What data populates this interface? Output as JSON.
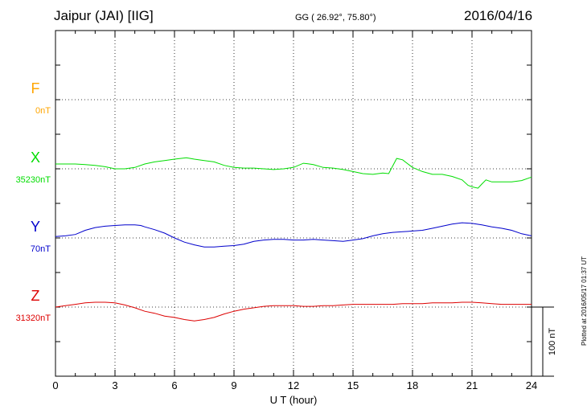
{
  "header": {
    "station": "Jaipur (JAI)  [IIG]",
    "coords": "GG ( 26.92°,  75.80°)",
    "date": "2016/04/16"
  },
  "plotted_note": "Plotted at 2016/05/17 01:37 UT",
  "scale_bar_label": "100 nT",
  "colors": {
    "F": "#ffa500",
    "X": "#00dd00",
    "Y": "#0000cc",
    "Z": "#dd0000"
  },
  "chart_data": {
    "type": "line",
    "title": "Jaipur (JAI)  [IIG]",
    "xlabel": "U T (hour)",
    "xlim": [
      0,
      24
    ],
    "x_ticks": [
      0,
      3,
      6,
      9,
      12,
      15,
      18,
      21,
      24
    ],
    "grid": true,
    "series": [
      {
        "name": "F",
        "baseline_label": "0nT",
        "baseline_nT": 0,
        "points": []
      },
      {
        "name": "X",
        "baseline_label": "35230nT",
        "baseline_nT": 35230,
        "points": [
          [
            0,
            35237
          ],
          [
            1,
            35237
          ],
          [
            1.5,
            35236
          ],
          [
            2,
            35235
          ],
          [
            2.5,
            35233
          ],
          [
            3,
            35230
          ],
          [
            3.5,
            35230
          ],
          [
            4,
            35232
          ],
          [
            4.5,
            35237
          ],
          [
            5,
            35240
          ],
          [
            5.5,
            35242
          ],
          [
            6,
            35244
          ],
          [
            6.3,
            35245
          ],
          [
            6.6,
            35246
          ],
          [
            7,
            35244
          ],
          [
            7.5,
            35242
          ],
          [
            8,
            35240
          ],
          [
            8.5,
            35235
          ],
          [
            9,
            35232
          ],
          [
            9.5,
            35231
          ],
          [
            10,
            35231
          ],
          [
            10.5,
            35230
          ],
          [
            11,
            35229
          ],
          [
            11.5,
            35230
          ],
          [
            12,
            35232
          ],
          [
            12.5,
            35238
          ],
          [
            12.8,
            35237
          ],
          [
            13,
            35236
          ],
          [
            13.5,
            35232
          ],
          [
            14,
            35231
          ],
          [
            14.5,
            35229
          ],
          [
            15,
            35226
          ],
          [
            15.5,
            35223
          ],
          [
            16,
            35222
          ],
          [
            16.5,
            35224
          ],
          [
            16.8,
            35223
          ],
          [
            17,
            35234
          ],
          [
            17.2,
            35245
          ],
          [
            17.5,
            35243
          ],
          [
            18,
            35232
          ],
          [
            18.5,
            35226
          ],
          [
            19,
            35222
          ],
          [
            19.5,
            35222
          ],
          [
            20,
            35219
          ],
          [
            20.5,
            35214
          ],
          [
            20.8,
            35206
          ],
          [
            21,
            35204
          ],
          [
            21.3,
            35202
          ],
          [
            21.5,
            35208
          ],
          [
            21.7,
            35214
          ],
          [
            22,
            35211
          ],
          [
            22.5,
            35211
          ],
          [
            23,
            35211
          ],
          [
            23.5,
            35213
          ],
          [
            24,
            35218
          ]
        ]
      },
      {
        "name": "Y",
        "baseline_label": "70nT",
        "baseline_nT": 70,
        "points": [
          [
            0,
            72
          ],
          [
            0.5,
            73
          ],
          [
            1,
            75
          ],
          [
            1.5,
            81
          ],
          [
            2,
            85
          ],
          [
            2.5,
            87
          ],
          [
            3,
            88
          ],
          [
            3.5,
            89
          ],
          [
            4,
            89
          ],
          [
            4.3,
            88
          ],
          [
            4.5,
            86
          ],
          [
            5,
            82
          ],
          [
            5.5,
            77
          ],
          [
            6,
            70
          ],
          [
            6.5,
            64
          ],
          [
            7,
            60
          ],
          [
            7.5,
            57
          ],
          [
            8,
            57
          ],
          [
            8.5,
            58
          ],
          [
            9,
            59
          ],
          [
            9.5,
            61
          ],
          [
            10,
            65
          ],
          [
            10.5,
            67
          ],
          [
            11,
            68
          ],
          [
            11.5,
            68
          ],
          [
            12,
            67
          ],
          [
            12.5,
            67
          ],
          [
            13,
            68
          ],
          [
            13.5,
            67
          ],
          [
            14,
            66
          ],
          [
            14.5,
            65
          ],
          [
            15,
            67
          ],
          [
            15.5,
            69
          ],
          [
            16,
            73
          ],
          [
            16.5,
            76
          ],
          [
            17,
            78
          ],
          [
            17.5,
            79
          ],
          [
            18,
            80
          ],
          [
            18.5,
            81
          ],
          [
            19,
            84
          ],
          [
            19.5,
            87
          ],
          [
            20,
            90
          ],
          [
            20.5,
            92
          ],
          [
            21,
            91
          ],
          [
            21.5,
            89
          ],
          [
            22,
            86
          ],
          [
            22.5,
            84
          ],
          [
            23,
            81
          ],
          [
            23.5,
            76
          ],
          [
            24,
            73
          ]
        ]
      },
      {
        "name": "Z",
        "baseline_label": "31320nT",
        "baseline_nT": 31320,
        "points": [
          [
            0,
            31320
          ],
          [
            0.5,
            31322
          ],
          [
            1,
            31324
          ],
          [
            1.5,
            31326
          ],
          [
            2,
            31327
          ],
          [
            2.5,
            31327
          ],
          [
            3,
            31326
          ],
          [
            3.5,
            31323
          ],
          [
            4,
            31319
          ],
          [
            4.5,
            31314
          ],
          [
            5,
            31311
          ],
          [
            5.5,
            31307
          ],
          [
            6,
            31305
          ],
          [
            6.5,
            31302
          ],
          [
            7,
            31300
          ],
          [
            7.5,
            31302
          ],
          [
            8,
            31305
          ],
          [
            8.5,
            31310
          ],
          [
            9,
            31314
          ],
          [
            9.5,
            31317
          ],
          [
            10,
            31319
          ],
          [
            10.5,
            31321
          ],
          [
            11,
            31322
          ],
          [
            11.5,
            31322
          ],
          [
            12,
            31322
          ],
          [
            12.5,
            31321
          ],
          [
            13,
            31321
          ],
          [
            13.5,
            31322
          ],
          [
            14,
            31322
          ],
          [
            14.5,
            31323
          ],
          [
            15,
            31324
          ],
          [
            15.5,
            31324
          ],
          [
            16,
            31324
          ],
          [
            16.5,
            31324
          ],
          [
            17,
            31324
          ],
          [
            17.5,
            31325
          ],
          [
            18,
            31325
          ],
          [
            18.5,
            31325
          ],
          [
            19,
            31326
          ],
          [
            19.5,
            31326
          ],
          [
            20,
            31326
          ],
          [
            20.5,
            31327
          ],
          [
            21,
            31327
          ],
          [
            21.5,
            31326
          ],
          [
            22,
            31325
          ],
          [
            22.5,
            31324
          ],
          [
            23,
            31324
          ],
          [
            23.5,
            31324
          ],
          [
            24,
            31324
          ]
        ]
      }
    ]
  }
}
